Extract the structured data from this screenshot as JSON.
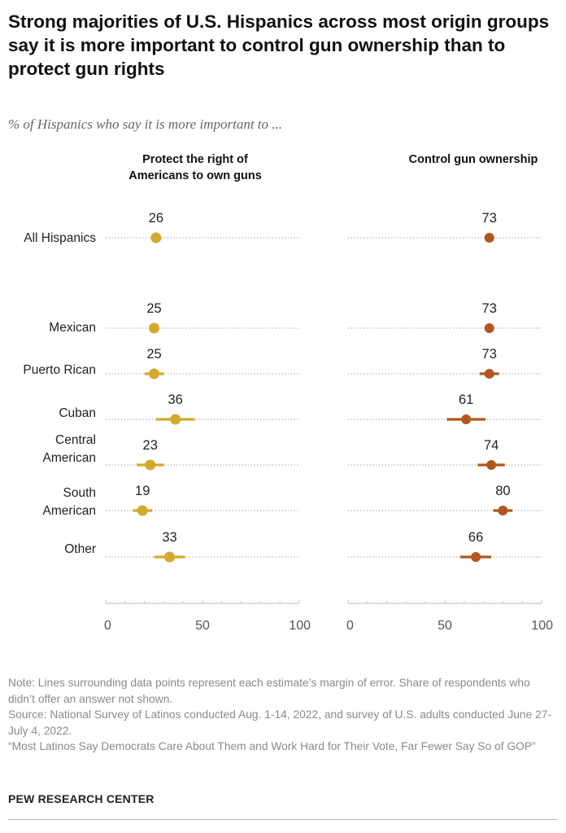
{
  "header": {
    "title": "Strong majorities of U.S. Hispanics across most origin groups say it is more important to control gun ownership than to protect gun rights",
    "subtitle": "% of Hispanics who say it is more important to ..."
  },
  "chart_data": {
    "type": "dot_plot_with_error_bars",
    "panels": [
      {
        "name": "Protect the right of Americans to own guns",
        "color": "#d4a92c",
        "values": [
          26,
          25,
          25,
          36,
          23,
          19,
          33
        ],
        "margin_low": [
          26,
          23,
          20,
          26,
          16,
          14,
          25
        ],
        "margin_high": [
          26,
          27,
          30,
          46,
          30,
          24,
          41
        ]
      },
      {
        "name": "Control gun ownership",
        "color": "#b0571f",
        "values": [
          73,
          73,
          73,
          61,
          74,
          80,
          66
        ],
        "margin_low": [
          73,
          71,
          68,
          51,
          67,
          75,
          58
        ],
        "margin_high": [
          73,
          75,
          78,
          71,
          81,
          85,
          74
        ]
      }
    ],
    "categories": [
      "All Hispanics",
      "Mexican",
      "Puerto Rican",
      "Cuban",
      "Central American",
      "South American",
      "Other"
    ],
    "xlim": [
      0,
      100
    ],
    "ticks": [
      0,
      50,
      100
    ],
    "tick_labels": [
      "0",
      "50",
      "100"
    ]
  },
  "rows": [
    {
      "line1": "All Hispanics",
      "line2": ""
    },
    {
      "line1": "Mexican",
      "line2": ""
    },
    {
      "line1": "Puerto Rican",
      "line2": ""
    },
    {
      "line1": "Cuban",
      "line2": ""
    },
    {
      "line1": "Central",
      "line2": "American"
    },
    {
      "line1": "South",
      "line2": "American"
    },
    {
      "line1": "Other",
      "line2": ""
    }
  ],
  "columns": {
    "left_line1": "Protect the right of",
    "left_line2": "Americans to own guns",
    "right": "Control gun ownership"
  },
  "notes": {
    "note": "Note: Lines surrounding data points represent each estimate’s margin of error. Share of respondents who didn’t offer an answer not shown.",
    "source": "Source: National Survey of Latinos conducted Aug. 1-14, 2022, and survey of U.S. adults conducted June 27-July 4, 2022.",
    "report": "“Most Latinos Say Democrats Care About Them and Work Hard for Their Vote, Far Fewer Say So of GOP”"
  },
  "brand": "PEW RESEARCH CENTER"
}
